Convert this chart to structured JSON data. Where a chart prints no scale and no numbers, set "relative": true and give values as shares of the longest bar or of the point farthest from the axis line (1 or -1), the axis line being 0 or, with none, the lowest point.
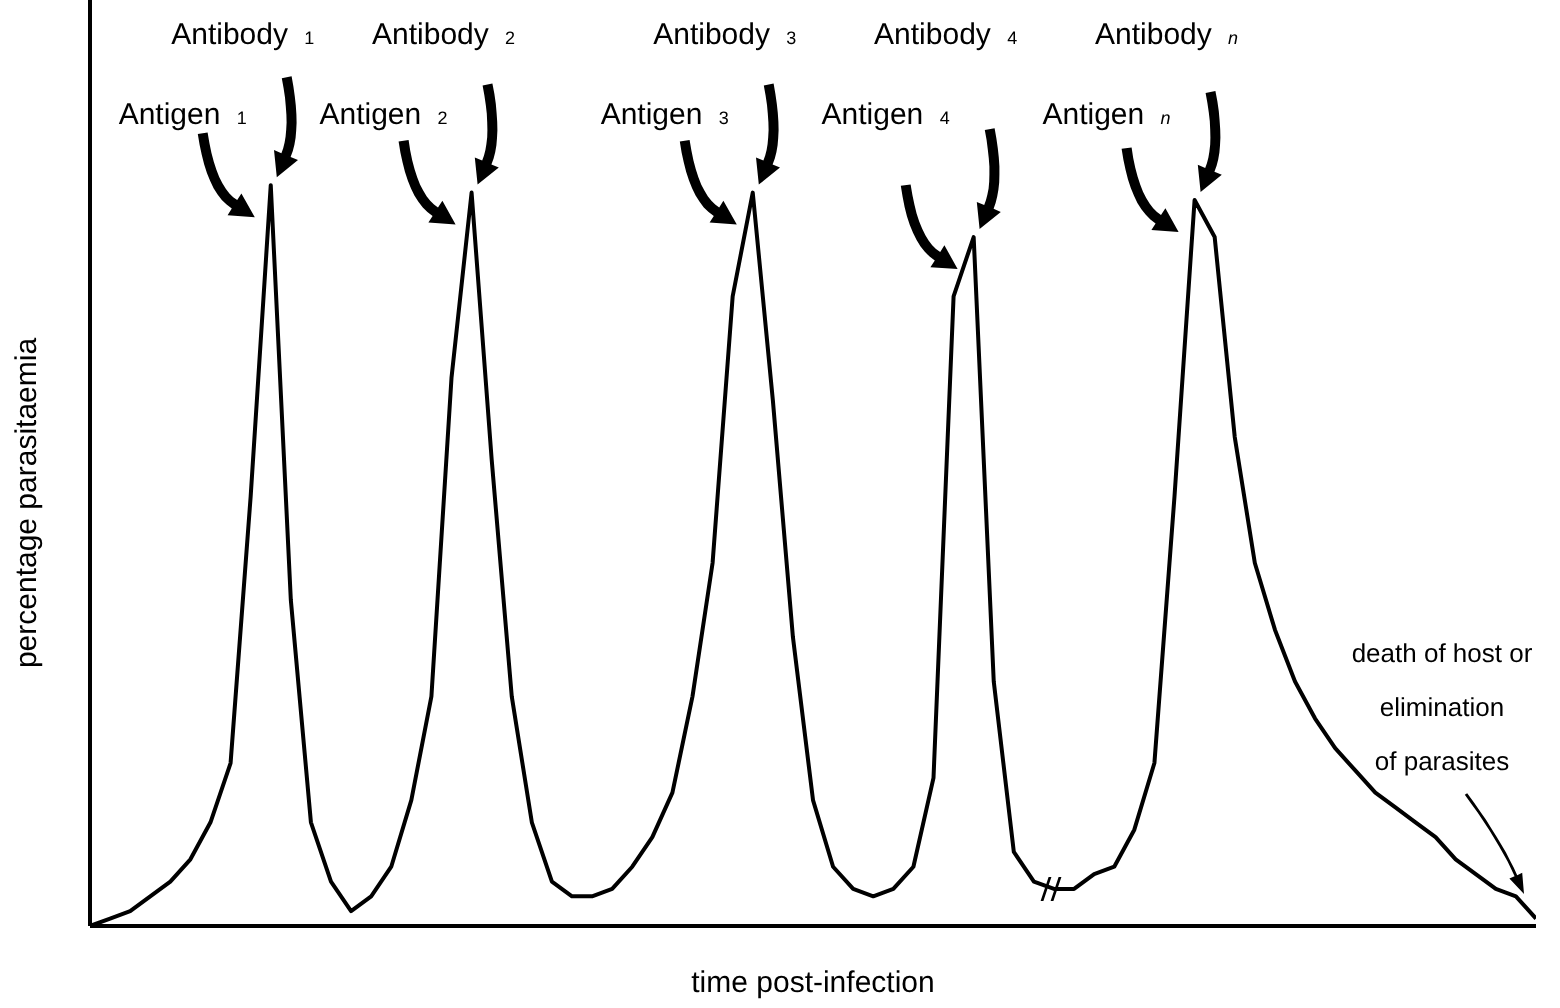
{
  "chart_data": {
    "type": "line",
    "relative": true,
    "xlabel": "time post-infection",
    "ylabel": "percentage parasitaemia",
    "categories": [
      null,
      null,
      null,
      null,
      null,
      null,
      null,
      null,
      null,
      null,
      null,
      null,
      null,
      null,
      null,
      null,
      null,
      null,
      null,
      null,
      null,
      null,
      null,
      null,
      null,
      null,
      null,
      null,
      null,
      null,
      null,
      null,
      null,
      null,
      null,
      null,
      null,
      null,
      null,
      null,
      null,
      null,
      null,
      null,
      null,
      null,
      null,
      null,
      null,
      null,
      null,
      null,
      null,
      null,
      null,
      null,
      null,
      null,
      null,
      null,
      null,
      null,
      null,
      null,
      null,
      null,
      null,
      null,
      null,
      null,
      null,
      null,
      null
    ],
    "series": [
      {
        "color": "#000000",
        "values": [
          0.0,
          0.01,
          0.02,
          0.04,
          0.06,
          0.09,
          0.14,
          0.22,
          0.58,
          1.0,
          0.44,
          0.14,
          0.06,
          0.02,
          0.04,
          0.08,
          0.17,
          0.31,
          0.74,
          0.99,
          0.63,
          0.31,
          0.14,
          0.06,
          0.04,
          0.04,
          0.05,
          0.08,
          0.12,
          0.18,
          0.31,
          0.49,
          0.85,
          0.99,
          0.71,
          0.39,
          0.17,
          0.08,
          0.05,
          0.04,
          0.05,
          0.08,
          0.2,
          0.85,
          0.93,
          0.33,
          0.1,
          0.06,
          0.05,
          0.05,
          0.07,
          0.08,
          0.13,
          0.22,
          0.58,
          0.98,
          0.93,
          0.66,
          0.49,
          0.4,
          0.33,
          0.28,
          0.24,
          0.21,
          0.18,
          0.16,
          0.14,
          0.12,
          0.09,
          0.07,
          0.05,
          0.04,
          0.01
        ]
      }
    ],
    "annotations": [
      "Antibody $_{1}$",
      "Antigen $_{1}$",
      "Antibody $_{2}$",
      "Antigen $_{2}$",
      "Antibody $_{3}$",
      "Antigen $_{3}$",
      "Antibody $_{4}$",
      "Antigen $_{4}$",
      "Antibody $_{n}$",
      "Antigen $_{n}$",
      "death of host or\nelimination\nof parasites"
    ]
  }
}
